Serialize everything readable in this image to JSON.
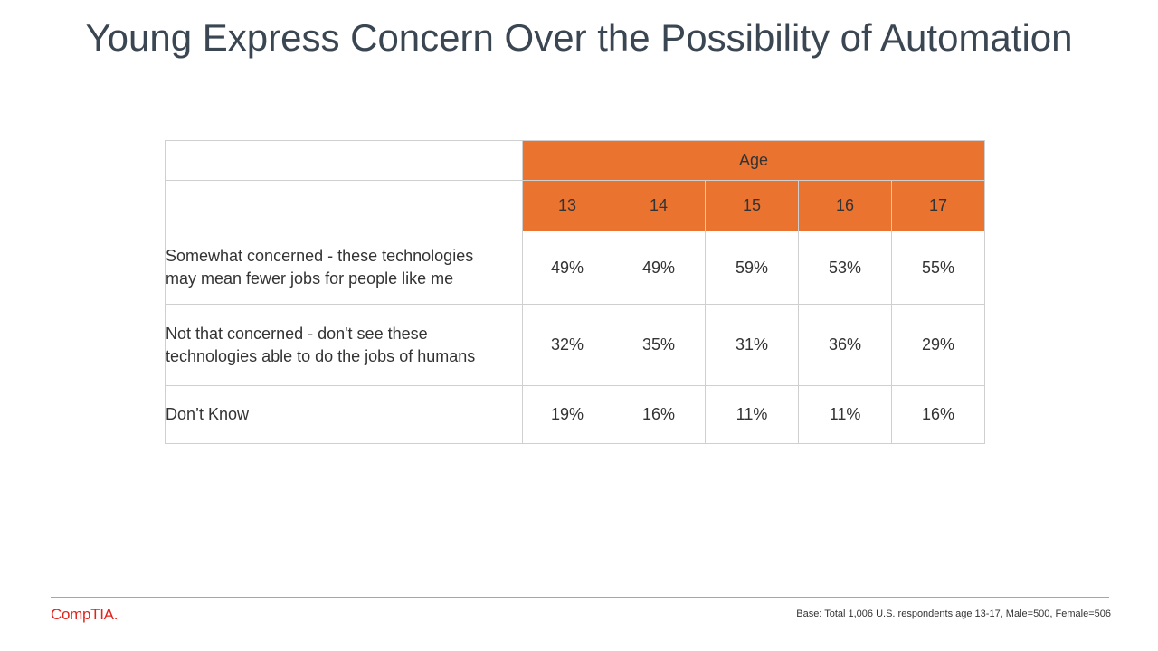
{
  "title": "Young Express Concern Over the Possibility of Automation",
  "chart_data": {
    "type": "table",
    "header_group": "Age",
    "columns": [
      "13",
      "14",
      "15",
      "16",
      "17"
    ],
    "rows": [
      {
        "label_line1": "Somewhat concerned  - these technologies",
        "label_line2": "may mean fewer  jobs for people  like me",
        "values": [
          "49%",
          "49%",
          "59%",
          "53%",
          "55%"
        ]
      },
      {
        "label_line1": "Not that concerned  - don't see these",
        "label_line2": "technologies able to do the jobs of humans",
        "values": [
          "32%",
          "35%",
          "31%",
          "36%",
          "29%"
        ]
      },
      {
        "label_line1": "Don’t Know",
        "label_line2": "",
        "values": [
          "19%",
          "16%",
          "11%",
          "11%",
          "16%"
        ]
      }
    ]
  },
  "footer": {
    "logo_text": "CompTIA.",
    "note": "Base: Total 1,006 U.S. respondents age 13-17, Male=500, Female=506"
  },
  "colors": {
    "accent": "#eb7330",
    "title": "#3a4652",
    "logo": "#e2231a"
  }
}
